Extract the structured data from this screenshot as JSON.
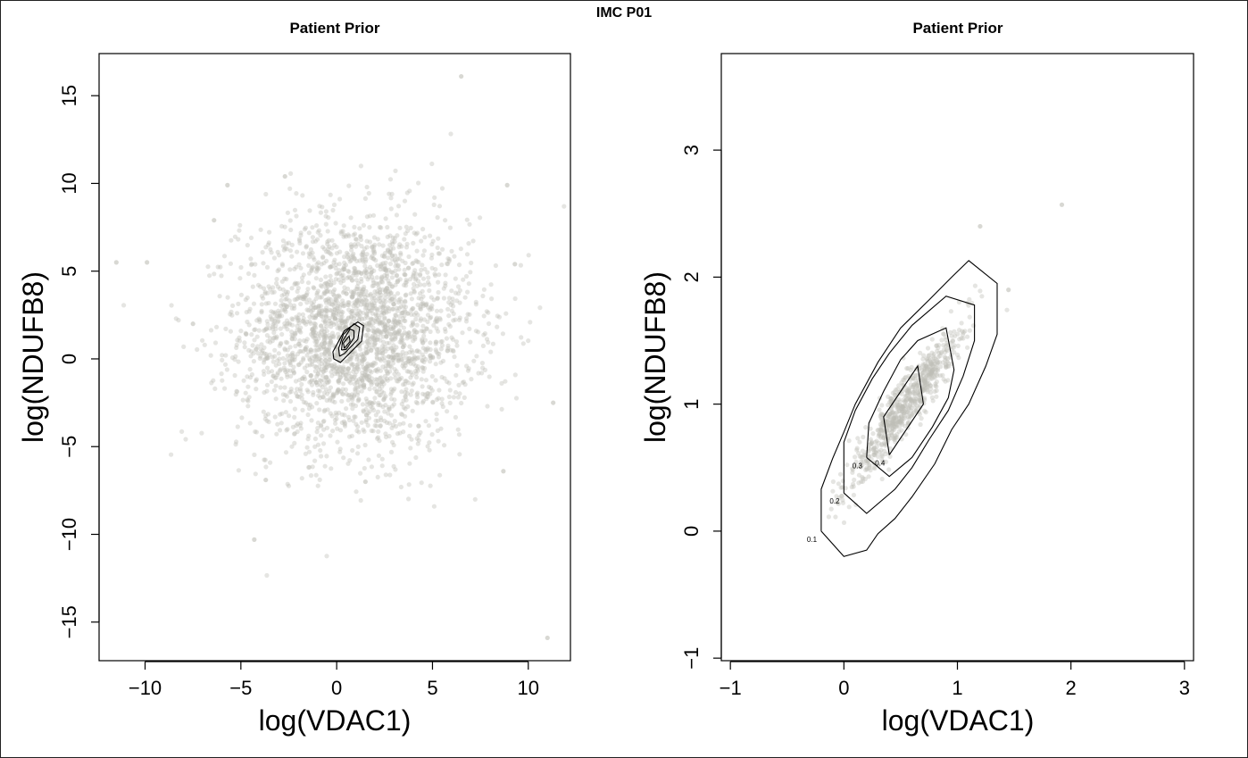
{
  "figure": {
    "title": "IMC P01"
  },
  "chart_data": [
    {
      "type": "scatter",
      "title": "Patient Prior",
      "xlabel": "log(VDAC1)",
      "ylabel": "log(NDUFB8)",
      "xlim": [
        -12.4,
        12.2
      ],
      "ylim": [
        -17.2,
        17.4
      ],
      "xticks": [
        -10,
        -5,
        0,
        5,
        10
      ],
      "yticks": [
        -15,
        -10,
        -5,
        0,
        5,
        10,
        15
      ],
      "xtick_labels": [
        "−10",
        "−5",
        "0",
        "5",
        "10"
      ],
      "ytick_labels": [
        "−15",
        "−10",
        "−5",
        "0",
        "5",
        "10",
        "15"
      ],
      "point_color": "#bebeb6",
      "point_cloud": {
        "n": 2600,
        "center_x": 1.0,
        "center_y": 1.5,
        "sd_x": 3.0,
        "sd_y": 3.3
      },
      "outliers": [
        {
          "x": 6.5,
          "y": 16.1
        },
        {
          "x": 11.0,
          "y": -15.9
        },
        {
          "x": -4.3,
          "y": -10.3
        },
        {
          "x": -11.5,
          "y": 5.5
        },
        {
          "x": -9.9,
          "y": 5.5
        },
        {
          "x": 11.3,
          "y": -2.5
        },
        {
          "x": 8.9,
          "y": 9.9
        },
        {
          "x": -5.7,
          "y": 9.9
        },
        {
          "x": -3.7,
          "y": -6.9
        },
        {
          "x": 1.5,
          "y": -7.0
        },
        {
          "x": 8.7,
          "y": -6.4
        },
        {
          "x": -6.4,
          "y": 7.9
        },
        {
          "x": -2.7,
          "y": 10.4
        },
        {
          "x": 9.3,
          "y": 5.4
        },
        {
          "x": -7.5,
          "y": 2.0
        }
      ],
      "contours": [
        {
          "level": 0.1,
          "points": [
            [
              -0.15,
              0.0
            ],
            [
              0.2,
              -0.2
            ],
            [
              1.3,
              1.0
            ],
            [
              1.4,
              1.9
            ],
            [
              1.1,
              2.1
            ],
            [
              0.4,
              1.6
            ],
            [
              -0.2,
              0.4
            ],
            [
              -0.15,
              0.0
            ]
          ]
        },
        {
          "level": 0.2,
          "points": [
            [
              0.15,
              0.15
            ],
            [
              0.4,
              0.3
            ],
            [
              1.1,
              1.1
            ],
            [
              1.2,
              1.8
            ],
            [
              0.9,
              2.0
            ],
            [
              0.35,
              1.4
            ],
            [
              0.1,
              0.6
            ],
            [
              0.15,
              0.15
            ]
          ]
        },
        {
          "level": 0.3,
          "points": [
            [
              0.25,
              0.5
            ],
            [
              0.5,
              0.55
            ],
            [
              0.9,
              1.2
            ],
            [
              0.9,
              1.6
            ],
            [
              0.7,
              1.7
            ],
            [
              0.3,
              1.0
            ],
            [
              0.25,
              0.5
            ]
          ]
        },
        {
          "level": 0.4,
          "points": [
            [
              0.4,
              0.6
            ],
            [
              0.7,
              1.0
            ],
            [
              0.65,
              1.3
            ],
            [
              0.35,
              0.9
            ],
            [
              0.4,
              0.6
            ]
          ]
        }
      ]
    },
    {
      "type": "scatter",
      "title": "Patient Prior",
      "xlabel": "log(VDAC1)",
      "ylabel": "log(NDUFB8)",
      "xlim": [
        -1.08,
        3.08
      ],
      "ylim": [
        -1.02,
        3.76
      ],
      "xticks": [
        -1,
        0,
        1,
        2,
        3
      ],
      "yticks": [
        -1,
        0,
        1,
        2,
        3
      ],
      "xtick_labels": [
        "−1",
        "0",
        "1",
        "2",
        "3"
      ],
      "ytick_labels": [
        "−1",
        "0",
        "1",
        "2",
        "3"
      ],
      "point_color": "#bebeb6",
      "point_cloud": {
        "n": 700,
        "center_x": 0.55,
        "center_y": 1.0,
        "spread_major": 0.42,
        "spread_minor": 0.07
      },
      "outliers": [
        {
          "x": 1.92,
          "y": 2.57
        },
        {
          "x": 1.2,
          "y": 2.4
        },
        {
          "x": 1.45,
          "y": 1.9
        }
      ],
      "contours": [
        {
          "level": 0.1,
          "label": "0.1",
          "points": [
            [
              -0.2,
              0.0
            ],
            [
              0.0,
              -0.2
            ],
            [
              0.2,
              -0.15
            ],
            [
              0.3,
              -0.02
            ],
            [
              0.45,
              0.1
            ],
            [
              0.6,
              0.27
            ],
            [
              0.8,
              0.53
            ],
            [
              0.95,
              0.8
            ],
            [
              1.1,
              1.0
            ],
            [
              1.25,
              1.3
            ],
            [
              1.35,
              1.55
            ],
            [
              1.35,
              1.95
            ],
            [
              1.1,
              2.13
            ],
            [
              0.95,
              2.0
            ],
            [
              0.75,
              1.82
            ],
            [
              0.5,
              1.6
            ],
            [
              0.3,
              1.33
            ],
            [
              0.1,
              1.0
            ],
            [
              0.0,
              0.78
            ],
            [
              -0.1,
              0.57
            ],
            [
              -0.2,
              0.33
            ],
            [
              -0.2,
              0.0
            ]
          ]
        },
        {
          "level": 0.2,
          "label": "0.2",
          "points": [
            [
              0.0,
              0.3
            ],
            [
              0.2,
              0.14
            ],
            [
              0.45,
              0.33
            ],
            [
              0.6,
              0.5
            ],
            [
              0.75,
              0.72
            ],
            [
              0.92,
              0.95
            ],
            [
              1.05,
              1.22
            ],
            [
              1.15,
              1.5
            ],
            [
              1.15,
              1.78
            ],
            [
              0.9,
              1.85
            ],
            [
              0.6,
              1.62
            ],
            [
              0.4,
              1.4
            ],
            [
              0.25,
              1.2
            ],
            [
              0.1,
              0.95
            ],
            [
              0.0,
              0.7
            ],
            [
              0.0,
              0.3
            ]
          ]
        },
        {
          "level": 0.3,
          "label": "0.3",
          "points": [
            [
              0.2,
              0.58
            ],
            [
              0.4,
              0.43
            ],
            [
              0.6,
              0.58
            ],
            [
              0.78,
              0.82
            ],
            [
              0.92,
              1.05
            ],
            [
              0.97,
              1.27
            ],
            [
              0.9,
              1.6
            ],
            [
              0.65,
              1.5
            ],
            [
              0.5,
              1.35
            ],
            [
              0.35,
              1.1
            ],
            [
              0.22,
              0.85
            ],
            [
              0.2,
              0.58
            ]
          ]
        },
        {
          "level": 0.4,
          "label": "0.4",
          "points": [
            [
              0.4,
              0.6
            ],
            [
              0.7,
              1.0
            ],
            [
              0.65,
              1.3
            ],
            [
              0.35,
              0.9
            ],
            [
              0.4,
              0.6
            ]
          ]
        }
      ]
    }
  ]
}
